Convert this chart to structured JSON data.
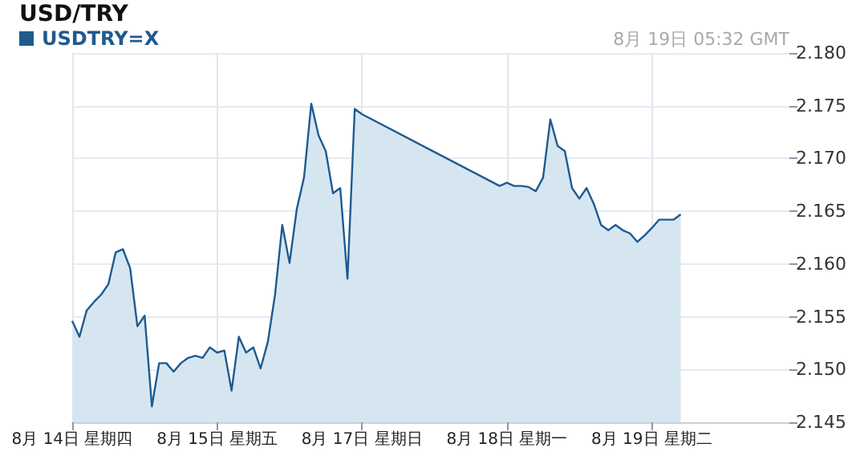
{
  "chart_data": {
    "type": "area",
    "title": "USD/TRY",
    "annotations": [
      "8月 19日 05:32 GMT"
    ],
    "legend": "top left",
    "grid": true,
    "marker": "none",
    "line_style": "solid",
    "categories": [
      "8月 14日 星期四",
      null,
      null,
      null,
      null,
      null,
      null,
      null,
      null,
      null,
      null,
      null,
      null,
      null,
      null,
      null,
      null,
      null,
      null,
      null,
      "8月 15日 星期五",
      null,
      null,
      null,
      null,
      null,
      null,
      null,
      null,
      null,
      null,
      null,
      null,
      null,
      null,
      null,
      null,
      null,
      null,
      null,
      "8月 17日 星期日",
      null,
      null,
      null,
      null,
      null,
      null,
      null,
      null,
      null,
      null,
      null,
      null,
      null,
      null,
      null,
      null,
      null,
      null,
      null,
      "8月 18日 星期一",
      null,
      null,
      null,
      null,
      null,
      null,
      null,
      null,
      null,
      null,
      null,
      null,
      null,
      null,
      null,
      null,
      null,
      null,
      null,
      "8月 19日 星期二",
      null,
      null,
      null,
      null,
      null,
      null,
      null,
      null,
      null,
      null,
      null,
      null,
      null,
      null,
      null,
      null,
      null,
      null,
      null
    ],
    "ylim": [
      2.145,
      2.18
    ],
    "yticks": [
      {
        "value": 2.145,
        "label": "2.145"
      },
      {
        "value": 2.15,
        "label": "2.150"
      },
      {
        "value": 2.155,
        "label": "2.155"
      },
      {
        "value": 2.16,
        "label": "2.160"
      },
      {
        "value": 2.165,
        "label": "2.165"
      },
      {
        "value": 2.17,
        "label": "2.170"
      },
      {
        "value": 2.175,
        "label": "2.175"
      },
      {
        "value": 2.18,
        "label": "2.180"
      }
    ],
    "series": [
      {
        "name": "USDTRY=X",
        "color": "#1f5a8f",
        "values": [
          2.1546,
          2.1531,
          2.1556,
          2.1564,
          2.1571,
          2.1581,
          2.1611,
          2.1614,
          2.1596,
          2.1541,
          2.1551,
          2.1465,
          2.1506,
          2.1506,
          2.1498,
          2.1506,
          2.1511,
          2.1513,
          2.1511,
          2.1521,
          2.1516,
          2.1518,
          2.148,
          2.1531,
          2.1516,
          2.1521,
          2.1501,
          2.1526,
          2.1571,
          2.1637,
          2.1601,
          2.1652,
          2.1682,
          2.1752,
          2.1722,
          2.1707,
          2.1667,
          2.1672,
          2.1586,
          2.1747,
          2.1742,
          null,
          null,
          null,
          null,
          null,
          null,
          null,
          null,
          null,
          null,
          null,
          null,
          null,
          null,
          null,
          null,
          null,
          null,
          2.1674,
          2.1677,
          2.1674,
          2.1674,
          2.1673,
          2.1669,
          2.1682,
          2.1737,
          2.1712,
          2.1707,
          2.1672,
          2.1662,
          2.1672,
          2.1657,
          2.1637,
          2.1632,
          2.1637,
          2.1632,
          2.1629,
          2.1621,
          2.1627,
          2.1634,
          2.1642,
          2.1642,
          2.1642,
          2.1647,
          null,
          null,
          null,
          null,
          null,
          null,
          null,
          null,
          null,
          null,
          null,
          null,
          null,
          null,
          null
        ]
      }
    ]
  }
}
